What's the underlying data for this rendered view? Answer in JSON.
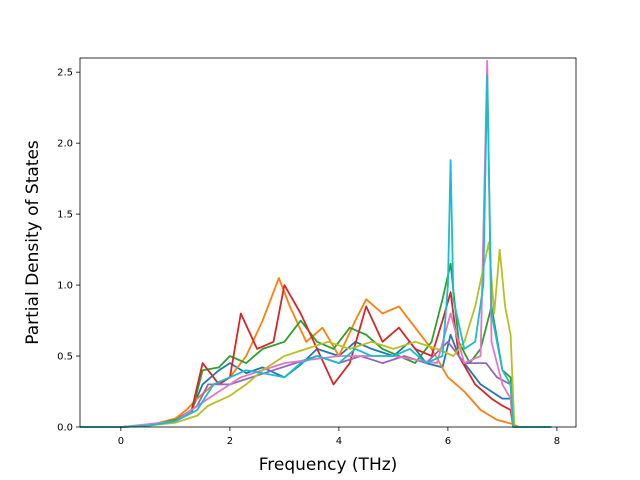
{
  "chart_data": {
    "type": "line",
    "title": "",
    "xlabel": "Frequency (THz)",
    "ylabel": "Partial Density of States",
    "xlim": [
      -0.75,
      8.35
    ],
    "ylim": [
      0.0,
      2.6
    ],
    "xticks": [
      0,
      2,
      4,
      6,
      8
    ],
    "yticks": [
      0.0,
      0.5,
      1.0,
      1.5,
      2.0,
      2.5
    ],
    "xtick_labels": [
      "0",
      "2",
      "4",
      "6",
      "8"
    ],
    "ytick_labels": [
      "0.0",
      "0.5",
      "1.0",
      "1.5",
      "2.0",
      "2.5"
    ],
    "grid": false,
    "legend": "none",
    "series": [
      {
        "color": "#1f77b4",
        "points": [
          [
            -0.75,
            0
          ],
          [
            0,
            0
          ],
          [
            0.5,
            0.01
          ],
          [
            1.0,
            0.05
          ],
          [
            1.3,
            0.12
          ],
          [
            1.5,
            0.3
          ],
          [
            1.8,
            0.4
          ],
          [
            2.0,
            0.45
          ],
          [
            2.3,
            0.38
          ],
          [
            2.6,
            0.42
          ],
          [
            3.0,
            0.35
          ],
          [
            3.3,
            0.44
          ],
          [
            3.6,
            0.55
          ],
          [
            4.0,
            0.5
          ],
          [
            4.3,
            0.6
          ],
          [
            4.6,
            0.55
          ],
          [
            5.0,
            0.5
          ],
          [
            5.3,
            0.6
          ],
          [
            5.6,
            0.45
          ],
          [
            5.9,
            0.42
          ],
          [
            6.05,
            0.65
          ],
          [
            6.2,
            0.5
          ],
          [
            6.4,
            0.4
          ],
          [
            6.6,
            0.3
          ],
          [
            6.8,
            0.25
          ],
          [
            7.0,
            0.2
          ],
          [
            7.15,
            0.2
          ],
          [
            7.2,
            0
          ],
          [
            7.9,
            0
          ]
        ]
      },
      {
        "color": "#ff7f0e",
        "points": [
          [
            -0.75,
            0
          ],
          [
            0,
            0
          ],
          [
            0.5,
            0.01
          ],
          [
            1.0,
            0.06
          ],
          [
            1.2,
            0.12
          ],
          [
            1.4,
            0.2
          ],
          [
            1.7,
            0.3
          ],
          [
            2.0,
            0.35
          ],
          [
            2.3,
            0.5
          ],
          [
            2.6,
            0.75
          ],
          [
            2.9,
            1.05
          ],
          [
            3.1,
            0.85
          ],
          [
            3.4,
            0.6
          ],
          [
            3.7,
            0.7
          ],
          [
            4.0,
            0.5
          ],
          [
            4.3,
            0.75
          ],
          [
            4.5,
            0.9
          ],
          [
            4.8,
            0.8
          ],
          [
            5.1,
            0.85
          ],
          [
            5.4,
            0.7
          ],
          [
            5.7,
            0.55
          ],
          [
            6.0,
            0.35
          ],
          [
            6.3,
            0.25
          ],
          [
            6.6,
            0.12
          ],
          [
            6.9,
            0.05
          ],
          [
            7.2,
            0.02
          ],
          [
            7.3,
            0
          ],
          [
            7.9,
            0
          ]
        ]
      },
      {
        "color": "#2ca02c",
        "points": [
          [
            -0.75,
            0
          ],
          [
            0,
            0
          ],
          [
            0.5,
            0.01
          ],
          [
            1.0,
            0.05
          ],
          [
            1.3,
            0.1
          ],
          [
            1.5,
            0.4
          ],
          [
            1.8,
            0.42
          ],
          [
            2.0,
            0.5
          ],
          [
            2.3,
            0.45
          ],
          [
            2.6,
            0.55
          ],
          [
            3.0,
            0.6
          ],
          [
            3.3,
            0.75
          ],
          [
            3.6,
            0.6
          ],
          [
            3.9,
            0.55
          ],
          [
            4.2,
            0.7
          ],
          [
            4.5,
            0.65
          ],
          [
            4.8,
            0.55
          ],
          [
            5.1,
            0.5
          ],
          [
            5.4,
            0.45
          ],
          [
            5.7,
            0.6
          ],
          [
            5.9,
            0.9
          ],
          [
            6.05,
            1.15
          ],
          [
            6.2,
            0.6
          ],
          [
            6.4,
            0.45
          ],
          [
            6.6,
            0.55
          ],
          [
            6.8,
            0.85
          ],
          [
            7.0,
            0.4
          ],
          [
            7.15,
            0.35
          ],
          [
            7.2,
            0
          ],
          [
            7.9,
            0
          ]
        ]
      },
      {
        "color": "#d62728",
        "points": [
          [
            -0.75,
            0
          ],
          [
            0,
            0
          ],
          [
            0.5,
            0.01
          ],
          [
            1.0,
            0.04
          ],
          [
            1.3,
            0.12
          ],
          [
            1.5,
            0.45
          ],
          [
            1.8,
            0.3
          ],
          [
            2.0,
            0.35
          ],
          [
            2.2,
            0.8
          ],
          [
            2.5,
            0.55
          ],
          [
            2.8,
            0.6
          ],
          [
            3.0,
            1.0
          ],
          [
            3.3,
            0.8
          ],
          [
            3.6,
            0.55
          ],
          [
            3.9,
            0.3
          ],
          [
            4.2,
            0.45
          ],
          [
            4.5,
            0.85
          ],
          [
            4.8,
            0.6
          ],
          [
            5.1,
            0.7
          ],
          [
            5.4,
            0.55
          ],
          [
            5.7,
            0.5
          ],
          [
            5.9,
            0.75
          ],
          [
            6.05,
            0.95
          ],
          [
            6.2,
            0.5
          ],
          [
            6.5,
            0.3
          ],
          [
            6.8,
            0.2
          ],
          [
            7.0,
            0.15
          ],
          [
            7.15,
            0.12
          ],
          [
            7.2,
            0
          ],
          [
            7.9,
            0
          ]
        ]
      },
      {
        "color": "#9467bd",
        "points": [
          [
            -0.75,
            0
          ],
          [
            0,
            0
          ],
          [
            0.5,
            0.01
          ],
          [
            1.0,
            0.04
          ],
          [
            1.4,
            0.15
          ],
          [
            1.6,
            0.3
          ],
          [
            2.0,
            0.3
          ],
          [
            2.4,
            0.35
          ],
          [
            2.8,
            0.4
          ],
          [
            3.2,
            0.45
          ],
          [
            3.6,
            0.5
          ],
          [
            4.0,
            0.45
          ],
          [
            4.4,
            0.5
          ],
          [
            4.8,
            0.45
          ],
          [
            5.2,
            0.5
          ],
          [
            5.6,
            0.45
          ],
          [
            6.0,
            0.6
          ],
          [
            6.3,
            0.45
          ],
          [
            6.7,
            0.45
          ],
          [
            6.9,
            0.35
          ],
          [
            7.15,
            0.3
          ],
          [
            7.2,
            0
          ],
          [
            7.9,
            0
          ]
        ]
      },
      {
        "color": "#e377c2",
        "points": [
          [
            -0.75,
            0
          ],
          [
            0,
            0
          ],
          [
            1.0,
            0.04
          ],
          [
            1.6,
            0.2
          ],
          [
            2.2,
            0.35
          ],
          [
            3.0,
            0.45
          ],
          [
            4.0,
            0.5
          ],
          [
            5.0,
            0.5
          ],
          [
            5.8,
            0.45
          ],
          [
            6.05,
            0.8
          ],
          [
            6.3,
            0.45
          ],
          [
            6.6,
            0.5
          ],
          [
            6.72,
            2.58
          ],
          [
            6.8,
            0.6
          ],
          [
            7.0,
            0.3
          ],
          [
            7.15,
            0.2
          ],
          [
            7.2,
            0
          ],
          [
            7.9,
            0
          ]
        ]
      },
      {
        "color": "#bcbd22",
        "points": [
          [
            -0.75,
            0
          ],
          [
            0,
            0
          ],
          [
            0.5,
            0.01
          ],
          [
            1.0,
            0.03
          ],
          [
            1.4,
            0.08
          ],
          [
            1.6,
            0.15
          ],
          [
            2.0,
            0.22
          ],
          [
            2.3,
            0.3
          ],
          [
            2.6,
            0.4
          ],
          [
            3.0,
            0.5
          ],
          [
            3.4,
            0.55
          ],
          [
            3.8,
            0.6
          ],
          [
            4.2,
            0.55
          ],
          [
            4.6,
            0.6
          ],
          [
            5.0,
            0.55
          ],
          [
            5.4,
            0.6
          ],
          [
            5.8,
            0.55
          ],
          [
            6.1,
            0.5
          ],
          [
            6.3,
            0.6
          ],
          [
            6.5,
            0.85
          ],
          [
            6.75,
            1.3
          ],
          [
            6.85,
            0.8
          ],
          [
            6.95,
            1.25
          ],
          [
            7.05,
            0.85
          ],
          [
            7.15,
            0.65
          ],
          [
            7.22,
            0
          ],
          [
            7.9,
            0
          ]
        ]
      },
      {
        "color": "#17becf",
        "points": [
          [
            -0.75,
            0
          ],
          [
            0,
            0
          ],
          [
            0.5,
            0.01
          ],
          [
            1.0,
            0.04
          ],
          [
            1.4,
            0.12
          ],
          [
            1.7,
            0.3
          ],
          [
            2.0,
            0.35
          ],
          [
            2.3,
            0.4
          ],
          [
            2.6,
            0.38
          ],
          [
            3.0,
            0.35
          ],
          [
            3.3,
            0.45
          ],
          [
            3.6,
            0.5
          ],
          [
            4.0,
            0.45
          ],
          [
            4.3,
            0.55
          ],
          [
            4.6,
            0.5
          ],
          [
            5.0,
            0.5
          ],
          [
            5.3,
            0.55
          ],
          [
            5.6,
            0.45
          ],
          [
            5.9,
            0.5
          ],
          [
            6.0,
            1.0
          ],
          [
            6.05,
            1.88
          ],
          [
            6.1,
            0.9
          ],
          [
            6.3,
            0.55
          ],
          [
            6.5,
            0.6
          ],
          [
            6.65,
            1.0
          ],
          [
            6.72,
            2.48
          ],
          [
            6.8,
            0.8
          ],
          [
            7.0,
            0.4
          ],
          [
            7.15,
            0.3
          ],
          [
            7.2,
            0
          ],
          [
            7.9,
            0
          ]
        ]
      }
    ]
  }
}
